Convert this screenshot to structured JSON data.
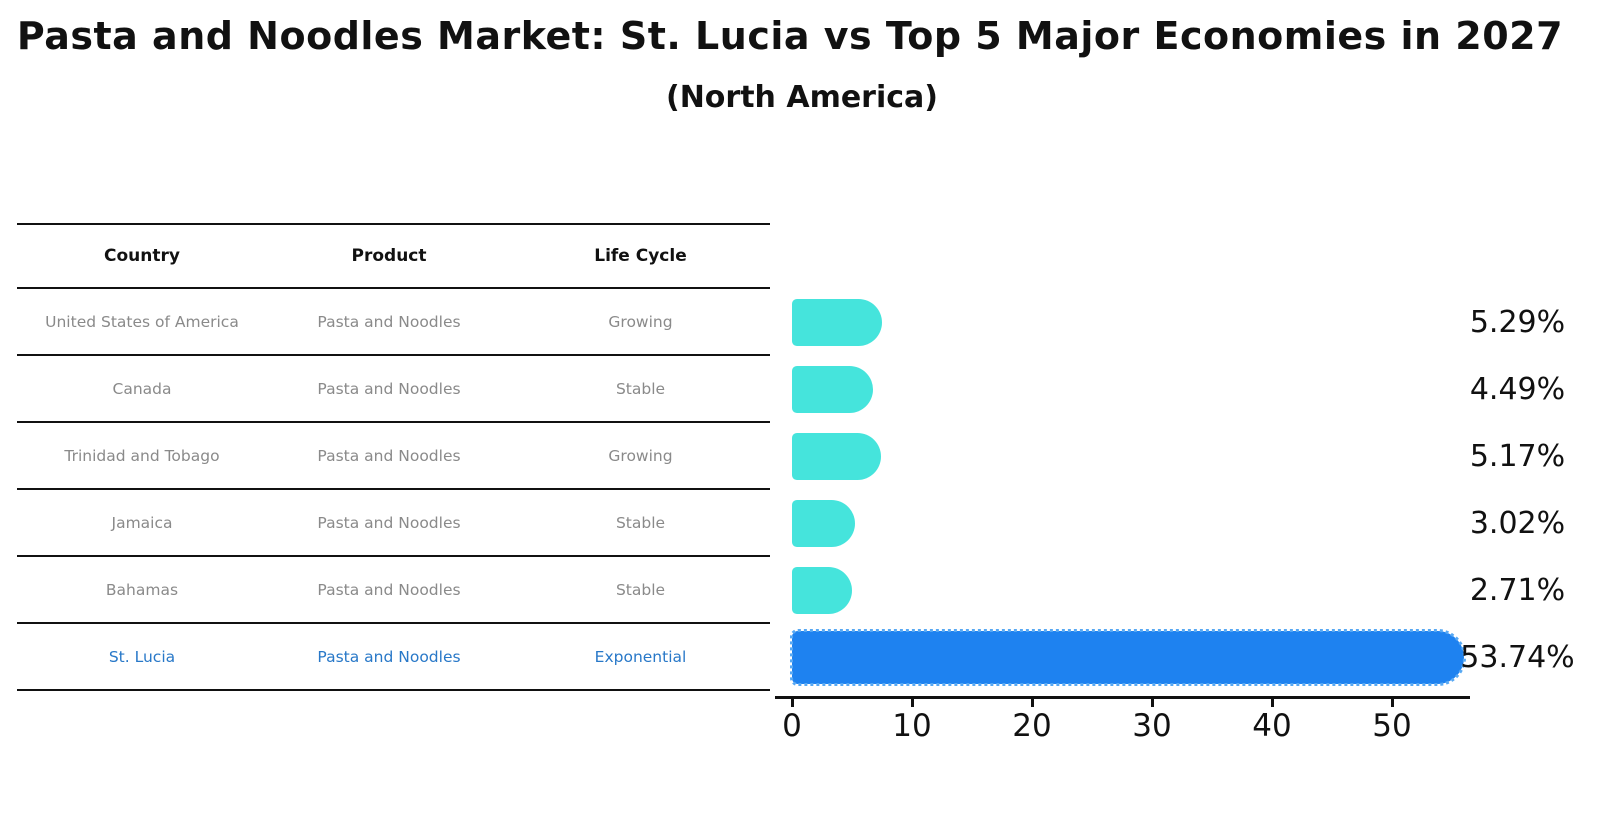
{
  "title": "Pasta and Noodles Market: St. Lucia vs Top 5 Major Economies in 2027",
  "subtitle": "(North America)",
  "table": {
    "headers": [
      "Country",
      "Product",
      "Life Cycle"
    ],
    "rows": [
      {
        "country": "United States of America",
        "product": "Pasta and Noodles",
        "life_cycle": "Growing",
        "highlight": false
      },
      {
        "country": "Canada",
        "product": "Pasta and Noodles",
        "life_cycle": "Stable",
        "highlight": false
      },
      {
        "country": "Trinidad and Tobago",
        "product": "Pasta and Noodles",
        "life_cycle": "Growing",
        "highlight": false
      },
      {
        "country": "Jamaica",
        "product": "Pasta and Noodles",
        "life_cycle": "Stable",
        "highlight": false
      },
      {
        "country": "Bahamas",
        "product": "Pasta and Noodles",
        "life_cycle": "Stable",
        "highlight": false
      },
      {
        "country": "St. Lucia",
        "product": "Pasta and Noodles",
        "life_cycle": "Exponential",
        "highlight": true
      }
    ]
  },
  "chart_data": {
    "type": "bar",
    "orientation": "horizontal",
    "title": "Pasta and Noodles Market: St. Lucia vs Top 5 Major Economies in 2027 (North America)",
    "categories": [
      "United States of America",
      "Canada",
      "Trinidad and Tobago",
      "Jamaica",
      "Bahamas",
      "St. Lucia"
    ],
    "values": [
      5.29,
      4.49,
      5.17,
      3.02,
      2.71,
      53.74
    ],
    "value_labels": [
      "5.29%",
      "4.49%",
      "5.17%",
      "3.02%",
      "2.71%",
      "53.74%"
    ],
    "highlight_index": 5,
    "x_ticks": [
      0,
      10,
      20,
      30,
      40,
      50
    ],
    "xlim": [
      0,
      56.5
    ],
    "xlabel": "",
    "ylabel": "",
    "grid": false,
    "legend": false,
    "bar_color": "#45e4dc",
    "highlight_color": "#1e82f0",
    "highlight_text_color": "#2878c8"
  }
}
